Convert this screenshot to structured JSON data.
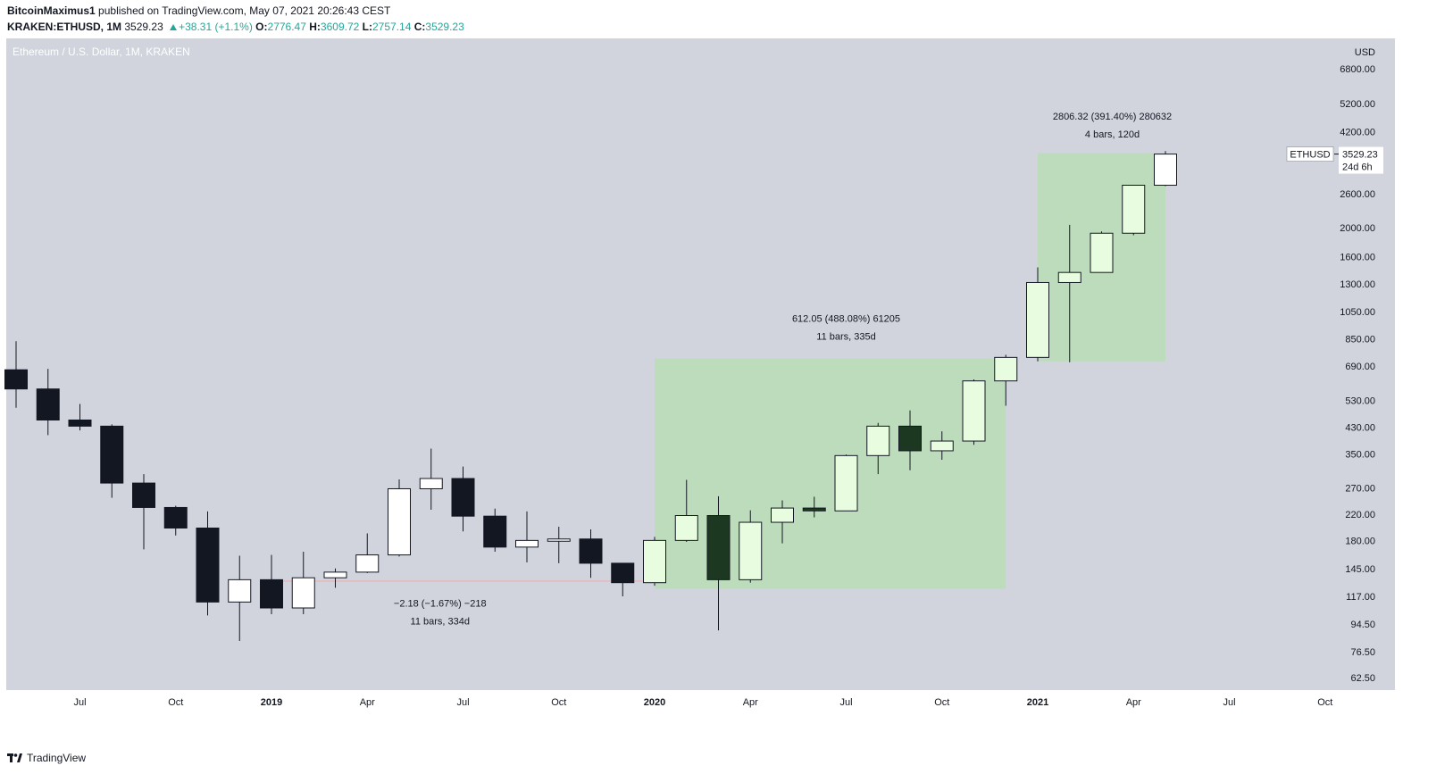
{
  "header": {
    "author": "BitcoinMaximus1",
    "published": "published on TradingView.com, May 07, 2021 20:26:43 CEST",
    "symbol": "KRAKEN:ETHUSD, 1M",
    "price": "3529.23",
    "change": "+38.31 (+1.1%)",
    "o_label": "O:",
    "o_value": "2776.47",
    "h_label": "H:",
    "h_value": "3609.72",
    "l_label": "L:",
    "l_value": "2757.14",
    "c_label": "C:",
    "c_value": "3529.23"
  },
  "footer": {
    "brand": "TradingView"
  },
  "colors": {
    "plot_bg": "#d1d4dc",
    "bear": "#131722",
    "bull": "#ffffff",
    "bear_green": "#1c3820",
    "bull_green": "#e8fce0",
    "measure_box": "#bcdcbc",
    "text": "#131722"
  },
  "chart_data": {
    "type": "candlestick",
    "title": "Ethereum / U.S. Dollar, 1M, KRAKEN",
    "currency_label": "USD",
    "y_scale": "log",
    "ylim": [
      55,
      8000
    ],
    "yticks": [
      62.5,
      76.5,
      94.5,
      117,
      145,
      180,
      220,
      270,
      350,
      430,
      530,
      690,
      850,
      1050,
      1300,
      1600,
      2000,
      2600,
      4200,
      5200,
      6800
    ],
    "ytick_labels": [
      "62.50",
      "76.50",
      "94.50",
      "117.00",
      "145.00",
      "180.00",
      "220.00",
      "270.00",
      "350.00",
      "430.00",
      "530.00",
      "690.00",
      "850.00",
      "1050.00",
      "1300.00",
      "1600.00",
      "2000.00",
      "2600.00",
      "4200.00",
      "5200.00",
      "6800.00"
    ],
    "x_labels": [
      "Jul",
      "Oct",
      "2019",
      "Apr",
      "Jul",
      "Oct",
      "2020",
      "Apr",
      "Jul",
      "Oct",
      "2021",
      "Apr",
      "Jul",
      "Oct"
    ],
    "x_label_months": [
      "2018-07",
      "2018-10",
      "2019-01",
      "2019-04",
      "2019-07",
      "2019-10",
      "2020-01",
      "2020-04",
      "2020-07",
      "2020-10",
      "2021-01",
      "2021-04",
      "2021-07",
      "2021-10"
    ],
    "candles": [
      {
        "month": "2018-05",
        "o": 670,
        "h": 835,
        "l": 500,
        "c": 578
      },
      {
        "month": "2018-06",
        "o": 578,
        "h": 675,
        "l": 405,
        "c": 455
      },
      {
        "month": "2018-07",
        "o": 455,
        "h": 515,
        "l": 420,
        "c": 434
      },
      {
        "month": "2018-08",
        "o": 434,
        "h": 440,
        "l": 250,
        "c": 280
      },
      {
        "month": "2018-09",
        "o": 280,
        "h": 300,
        "l": 168,
        "c": 232
      },
      {
        "month": "2018-10",
        "o": 232,
        "h": 235,
        "l": 187,
        "c": 198
      },
      {
        "month": "2018-11",
        "o": 198,
        "h": 225,
        "l": 101,
        "c": 112
      },
      {
        "month": "2018-12",
        "o": 112,
        "h": 160,
        "l": 83,
        "c": 133
      },
      {
        "month": "2019-01",
        "o": 133,
        "h": 161,
        "l": 102,
        "c": 107
      },
      {
        "month": "2019-02",
        "o": 107,
        "h": 165,
        "l": 102,
        "c": 135
      },
      {
        "month": "2019-03",
        "o": 135,
        "h": 145,
        "l": 125,
        "c": 141
      },
      {
        "month": "2019-04",
        "o": 141,
        "h": 190,
        "l": 140,
        "c": 161
      },
      {
        "month": "2019-05",
        "o": 161,
        "h": 288,
        "l": 159,
        "c": 268
      },
      {
        "month": "2019-06",
        "o": 268,
        "h": 365,
        "l": 228,
        "c": 290
      },
      {
        "month": "2019-07",
        "o": 290,
        "h": 318,
        "l": 193,
        "c": 217
      },
      {
        "month": "2019-08",
        "o": 217,
        "h": 230,
        "l": 165,
        "c": 171
      },
      {
        "month": "2019-09",
        "o": 171,
        "h": 225,
        "l": 152,
        "c": 180
      },
      {
        "month": "2019-10",
        "o": 180,
        "h": 200,
        "l": 151,
        "c": 182
      },
      {
        "month": "2019-11",
        "o": 182,
        "h": 196,
        "l": 135,
        "c": 151
      },
      {
        "month": "2019-12",
        "o": 151,
        "h": 151,
        "l": 117,
        "c": 130
      },
      {
        "month": "2020-01",
        "o": 130,
        "h": 185,
        "l": 127,
        "c": 180
      },
      {
        "month": "2020-02",
        "o": 180,
        "h": 287,
        "l": 178,
        "c": 218
      },
      {
        "month": "2020-03",
        "o": 218,
        "h": 253,
        "l": 90,
        "c": 133
      },
      {
        "month": "2020-04",
        "o": 133,
        "h": 227,
        "l": 130,
        "c": 207
      },
      {
        "month": "2020-05",
        "o": 207,
        "h": 245,
        "l": 176,
        "c": 231
      },
      {
        "month": "2020-06",
        "o": 231,
        "h": 252,
        "l": 215,
        "c": 226
      },
      {
        "month": "2020-07",
        "o": 226,
        "h": 349,
        "l": 226,
        "c": 346
      },
      {
        "month": "2020-08",
        "o": 346,
        "h": 445,
        "l": 300,
        "c": 434
      },
      {
        "month": "2020-09",
        "o": 434,
        "h": 490,
        "l": 309,
        "c": 359
      },
      {
        "month": "2020-10",
        "o": 359,
        "h": 417,
        "l": 335,
        "c": 387
      },
      {
        "month": "2020-11",
        "o": 387,
        "h": 622,
        "l": 376,
        "c": 615
      },
      {
        "month": "2020-12",
        "o": 615,
        "h": 752,
        "l": 508,
        "c": 737
      },
      {
        "month": "2021-01",
        "o": 737,
        "h": 1475,
        "l": 715,
        "c": 1312
      },
      {
        "month": "2021-02",
        "o": 1312,
        "h": 2045,
        "l": 710,
        "c": 1418
      },
      {
        "month": "2021-03",
        "o": 1418,
        "h": 1945,
        "l": 1418,
        "c": 1918
      },
      {
        "month": "2021-04",
        "o": 1918,
        "h": 2760,
        "l": 1888,
        "c": 2776
      },
      {
        "month": "2021-05",
        "o": 2776.47,
        "h": 3609.72,
        "l": 2757.14,
        "c": 3529.23
      }
    ],
    "green_candle_months": [
      "2020-01",
      "2020-02",
      "2020-03",
      "2020-04",
      "2020-05",
      "2020-06",
      "2020-07",
      "2020-08",
      "2020-09",
      "2020-10",
      "2020-11",
      "2020-12",
      "2021-01",
      "2021-02",
      "2021-03",
      "2021-04"
    ],
    "support_line": {
      "month_start": "2019-01",
      "month_end": "2020-01",
      "value": 131.5
    },
    "measurements": [
      {
        "line1": "−2.18 (−1.67%) −218",
        "line2": "11 bars, 334d",
        "month_start": "2019-01",
        "month_end": "2019-12",
        "low": 131.5,
        "high": 131.5,
        "shaded": false,
        "label_month": "2019-06",
        "label_value": 108
      },
      {
        "line1": "612.05 (488.08%) 61205",
        "line2": "11 bars, 335d",
        "month_start": "2020-01",
        "month_end": "2020-12",
        "low": 124,
        "high": 730,
        "shaded": true,
        "label_month": "2020-07",
        "label_value": 970
      },
      {
        "line1": "2806.32 (391.40%) 280632",
        "line2": "4 bars, 120d",
        "month_start": "2021-01",
        "month_end": "2021-05",
        "low": 715,
        "high": 3550,
        "shaded": true,
        "label_month": "2021-03",
        "label_value": 4600
      }
    ],
    "last_price_label": {
      "symbol": "ETHUSD",
      "price": "3529.23",
      "countdown": "24d 6h",
      "value": 3529.23
    }
  }
}
